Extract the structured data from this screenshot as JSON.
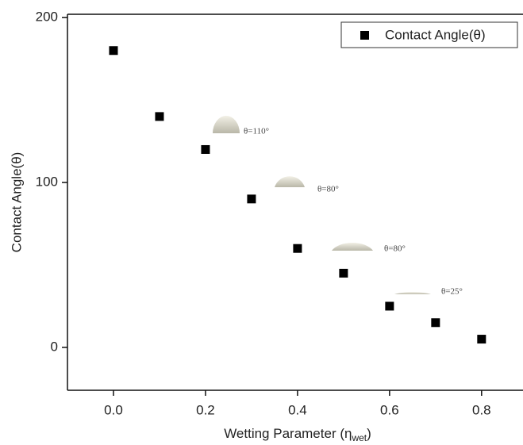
{
  "chart_data": {
    "type": "scatter",
    "x_label_parts": [
      "Wetting Parameter (η",
      "wet",
      ")"
    ],
    "y_label": "Contact Angle(θ)",
    "series": [
      {
        "name": "Contact Angle(θ)",
        "color": "#000000",
        "x": [
          0,
          0.1,
          0.2,
          0.3,
          0.4,
          0.5,
          0.6,
          0.7,
          0.8
        ],
        "values": [
          180,
          140,
          120,
          90,
          60,
          45,
          25,
          15,
          5
        ]
      }
    ],
    "xlim": [
      -0.1,
      0.89
    ],
    "ylim": [
      -26,
      202
    ],
    "xticks": [
      {
        "value": 0,
        "label": "0.0"
      },
      {
        "value": 0.2,
        "label": "0.2"
      },
      {
        "value": 0.4,
        "label": "0.4"
      },
      {
        "value": 0.6,
        "label": "0.6"
      },
      {
        "value": 0.8,
        "label": "0.8"
      }
    ],
    "yticks": [
      0,
      100,
      200
    ],
    "legend": "top-right",
    "annotations": [
      "θ=110°",
      "θ=80°",
      "θ=80°",
      "θ=25°"
    ]
  }
}
